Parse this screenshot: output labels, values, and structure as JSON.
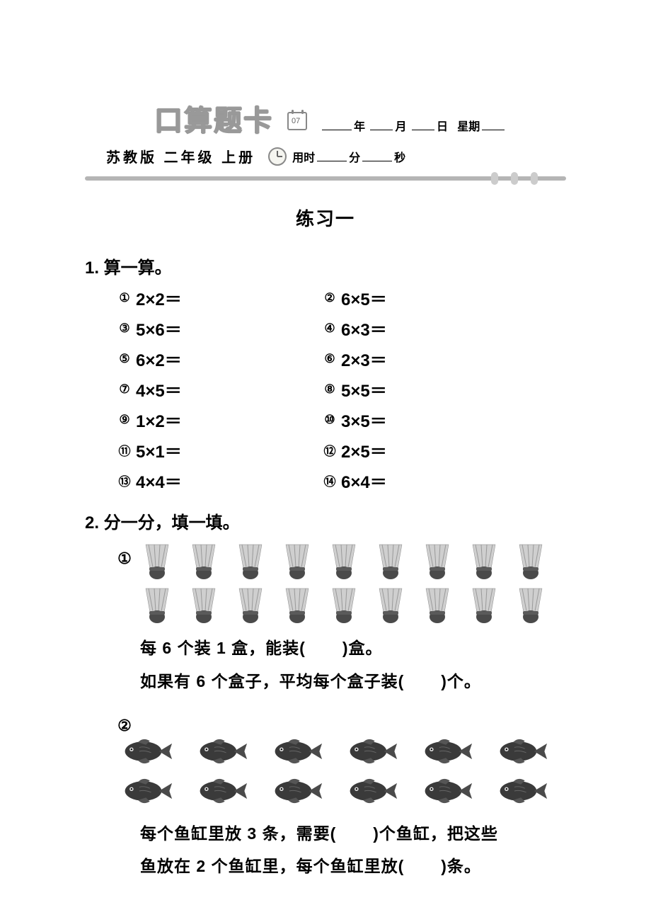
{
  "header": {
    "title": "口算题卡",
    "subtitle": "苏教版  二年级  上册",
    "date_labels": {
      "year": "年",
      "month": "月",
      "day": "日",
      "weekday": "星期"
    },
    "time_labels": {
      "prefix": "用时",
      "min": "分",
      "sec": "秒"
    }
  },
  "practice_title": "练习一",
  "q1": {
    "heading": "1. 算一算。",
    "items": [
      {
        "n": "①",
        "expr": "2×2＝"
      },
      {
        "n": "②",
        "expr": "6×5＝"
      },
      {
        "n": "③",
        "expr": "5×6＝"
      },
      {
        "n": "④",
        "expr": "6×3＝"
      },
      {
        "n": "⑤",
        "expr": "6×2＝"
      },
      {
        "n": "⑥",
        "expr": "2×3＝"
      },
      {
        "n": "⑦",
        "expr": "4×5＝"
      },
      {
        "n": "⑧",
        "expr": "5×5＝"
      },
      {
        "n": "⑨",
        "expr": "1×2＝"
      },
      {
        "n": "⑩",
        "expr": "3×5＝"
      },
      {
        "n": "⑪",
        "expr": "5×1＝"
      },
      {
        "n": "⑫",
        "expr": "2×5＝"
      },
      {
        "n": "⑬",
        "expr": "4×4＝"
      },
      {
        "n": "⑭",
        "expr": "6×4＝"
      }
    ]
  },
  "q2": {
    "heading": "2. 分一分，填一填。",
    "sub1": {
      "label": "①",
      "rows": 2,
      "per_row": 9,
      "icon": "shuttlecock",
      "line1_a": "每 6 个装 1 盒，能装(",
      "line1_b": ")盒。",
      "line2_a": "如果有 6 个盒子，平均每个盒子装(",
      "line2_b": ")个。"
    },
    "sub2": {
      "label": "②",
      "rows": 2,
      "per_row": 6,
      "icon": "fish",
      "line1_a": "每个鱼缸里放 3 条，需要(",
      "line1_b": ")个鱼缸，把这些",
      "line2_a": "鱼放在 2 个鱼缸里，每个鱼缸里放(",
      "line2_b": ")条。"
    }
  },
  "colors": {
    "title_gray": "#999999",
    "divider": "#b5b5b5",
    "text": "#000000",
    "icon_gray": "#6b6b6b"
  }
}
